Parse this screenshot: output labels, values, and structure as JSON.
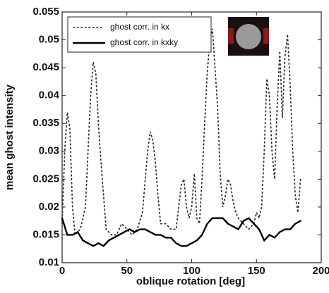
{
  "chart_data": {
    "type": "line",
    "xlabel": "oblique rotation [deg]",
    "ylabel": "mean ghost intensity",
    "xlim": [
      0,
      200
    ],
    "xticks": [
      0,
      50,
      100,
      150,
      200
    ],
    "ylim": [
      0.01,
      0.055
    ],
    "yticks": [
      0.01,
      0.015,
      0.02,
      0.025,
      0.03,
      0.035,
      0.04,
      0.045,
      0.05,
      0.055
    ],
    "legend": "upper left",
    "series": [
      {
        "name": "ghost corr. in kx",
        "color": "#333333",
        "style": "dotted",
        "x": [
          0,
          2,
          4,
          6,
          8,
          10,
          14,
          18,
          20,
          22,
          24,
          26,
          28,
          30,
          32,
          34,
          38,
          42,
          46,
          50,
          54,
          58,
          62,
          66,
          68,
          70,
          72,
          74,
          76,
          80,
          84,
          88,
          92,
          94,
          96,
          98,
          100,
          102,
          104,
          106,
          108,
          110,
          112,
          114,
          116,
          118,
          120,
          122,
          124,
          126,
          128,
          130,
          132,
          134,
          136,
          140,
          144,
          148,
          150,
          152,
          154,
          156,
          158,
          160,
          162,
          164,
          166,
          168,
          170,
          172,
          174,
          176,
          178,
          180,
          182,
          184
        ],
        "values": [
          0.017,
          0.03,
          0.037,
          0.034,
          0.02,
          0.015,
          0.016,
          0.02,
          0.03,
          0.04,
          0.046,
          0.044,
          0.035,
          0.028,
          0.022,
          0.016,
          0.015,
          0.015,
          0.017,
          0.016,
          0.015,
          0.016,
          0.019,
          0.03,
          0.0335,
          0.032,
          0.028,
          0.022,
          0.017,
          0.017,
          0.016,
          0.016,
          0.024,
          0.025,
          0.02,
          0.018,
          0.02,
          0.026,
          0.018,
          0.017,
          0.025,
          0.035,
          0.044,
          0.05,
          0.052,
          0.045,
          0.038,
          0.026,
          0.02,
          0.022,
          0.025,
          0.024,
          0.021,
          0.019,
          0.018,
          0.017,
          0.016,
          0.017,
          0.019,
          0.018,
          0.02,
          0.03,
          0.043,
          0.04,
          0.03,
          0.025,
          0.038,
          0.048,
          0.036,
          0.047,
          0.051,
          0.042,
          0.03,
          0.022,
          0.019,
          0.025
        ]
      },
      {
        "name": "ghost corr. in kxky",
        "color": "#000000",
        "style": "solid",
        "x": [
          0,
          4,
          8,
          12,
          16,
          20,
          24,
          28,
          32,
          36,
          40,
          44,
          48,
          52,
          56,
          60,
          64,
          68,
          72,
          76,
          80,
          84,
          88,
          92,
          96,
          100,
          104,
          108,
          112,
          116,
          120,
          124,
          128,
          132,
          136,
          140,
          144,
          148,
          152,
          156,
          160,
          164,
          168,
          172,
          176,
          180,
          184
        ],
        "values": [
          0.018,
          0.015,
          0.015,
          0.0155,
          0.014,
          0.0135,
          0.013,
          0.0135,
          0.013,
          0.014,
          0.0145,
          0.015,
          0.0155,
          0.016,
          0.0155,
          0.016,
          0.016,
          0.0155,
          0.015,
          0.015,
          0.0145,
          0.0145,
          0.0135,
          0.013,
          0.013,
          0.0135,
          0.014,
          0.015,
          0.017,
          0.018,
          0.018,
          0.018,
          0.017,
          0.0165,
          0.016,
          0.0175,
          0.018,
          0.017,
          0.016,
          0.014,
          0.015,
          0.0145,
          0.0155,
          0.016,
          0.016,
          0.017,
          0.0175
        ]
      }
    ]
  }
}
